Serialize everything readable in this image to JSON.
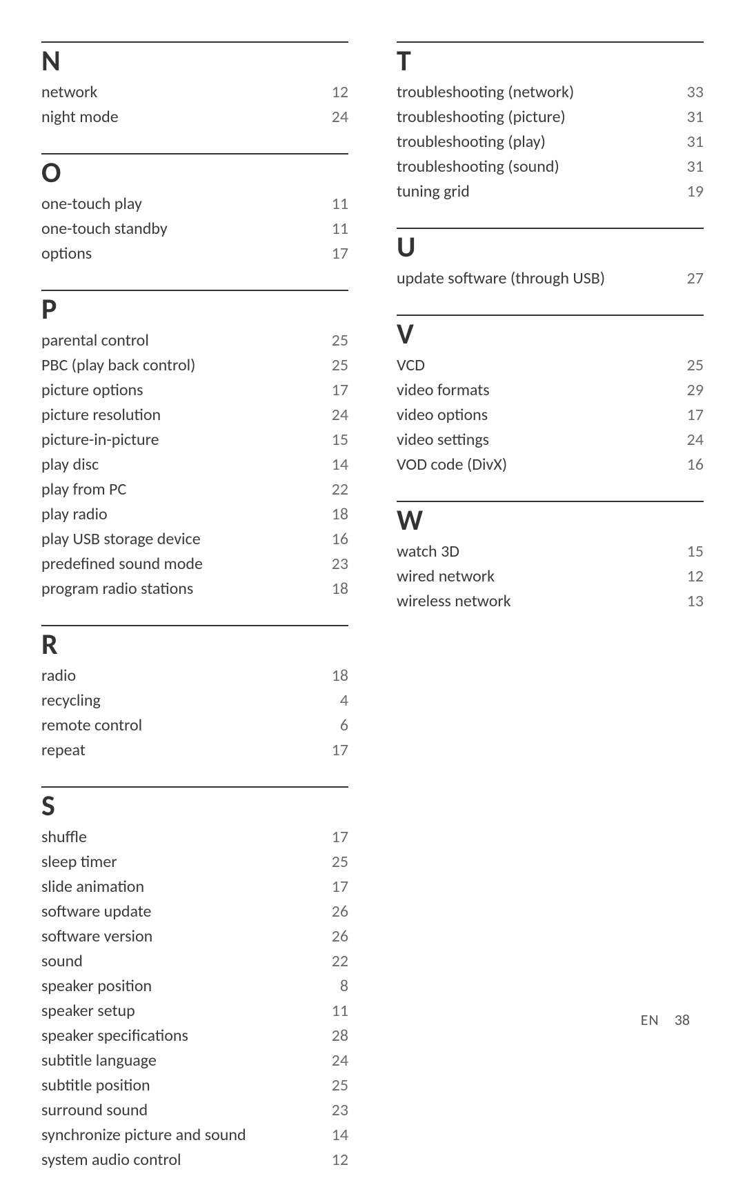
{
  "left": [
    {
      "letter": "N",
      "entries": [
        {
          "term": "network",
          "page": "12"
        },
        {
          "term": "night mode",
          "page": "24"
        }
      ]
    },
    {
      "letter": "O",
      "entries": [
        {
          "term": "one-touch play",
          "page": "11"
        },
        {
          "term": "one-touch standby",
          "page": "11"
        },
        {
          "term": "options",
          "page": "17"
        }
      ]
    },
    {
      "letter": "P",
      "entries": [
        {
          "term": "parental control",
          "page": "25"
        },
        {
          "term": "PBC (play back control)",
          "page": "25"
        },
        {
          "term": "picture options",
          "page": "17"
        },
        {
          "term": "picture resolution",
          "page": "24"
        },
        {
          "term": "picture-in-picture",
          "page": "15"
        },
        {
          "term": "play disc",
          "page": "14"
        },
        {
          "term": "play from PC",
          "page": "22"
        },
        {
          "term": "play radio",
          "page": "18"
        },
        {
          "term": "play USB storage device",
          "page": "16"
        },
        {
          "term": "predefined sound mode",
          "page": "23"
        },
        {
          "term": "program radio stations",
          "page": "18"
        }
      ]
    },
    {
      "letter": "R",
      "entries": [
        {
          "term": "radio",
          "page": "18"
        },
        {
          "term": "recycling",
          "page": "4"
        },
        {
          "term": "remote control",
          "page": "6"
        },
        {
          "term": "repeat",
          "page": "17"
        }
      ]
    },
    {
      "letter": "S",
      "entries": [
        {
          "term": "shuffle",
          "page": "17"
        },
        {
          "term": "sleep timer",
          "page": "25"
        },
        {
          "term": "slide animation",
          "page": "17"
        },
        {
          "term": "software update",
          "page": "26"
        },
        {
          "term": "software version",
          "page": "26"
        },
        {
          "term": "sound",
          "page": "22"
        },
        {
          "term": "speaker position",
          "page": "8"
        },
        {
          "term": "speaker setup",
          "page": "11"
        },
        {
          "term": "speaker specifications",
          "page": "28"
        },
        {
          "term": "subtitle language",
          "page": "24"
        },
        {
          "term": "subtitle position",
          "page": "25"
        },
        {
          "term": "surround sound",
          "page": "23"
        },
        {
          "term": "synchronize picture and sound",
          "page": "14"
        },
        {
          "term": "system audio control",
          "page": "12"
        }
      ]
    }
  ],
  "right": [
    {
      "letter": "T",
      "entries": [
        {
          "term": "troubleshooting (network)",
          "page": "33"
        },
        {
          "term": "troubleshooting (picture)",
          "page": "31"
        },
        {
          "term": "troubleshooting (play)",
          "page": "31"
        },
        {
          "term": "troubleshooting (sound)",
          "page": "31"
        },
        {
          "term": "tuning grid",
          "page": "19"
        }
      ]
    },
    {
      "letter": "U",
      "entries": [
        {
          "term": "update software (through USB)",
          "page": "27"
        }
      ]
    },
    {
      "letter": "V",
      "entries": [
        {
          "term": "VCD",
          "page": "25"
        },
        {
          "term": "video formats",
          "page": "29"
        },
        {
          "term": "video options",
          "page": "17"
        },
        {
          "term": "video settings",
          "page": "24"
        },
        {
          "term": "VOD code (DivX)",
          "page": "16"
        }
      ]
    },
    {
      "letter": "W",
      "entries": [
        {
          "term": "watch 3D",
          "page": "15"
        },
        {
          "term": "wired network",
          "page": "12"
        },
        {
          "term": "wireless network",
          "page": "13"
        }
      ]
    }
  ],
  "footer": {
    "lang": "EN",
    "page": "38"
  }
}
